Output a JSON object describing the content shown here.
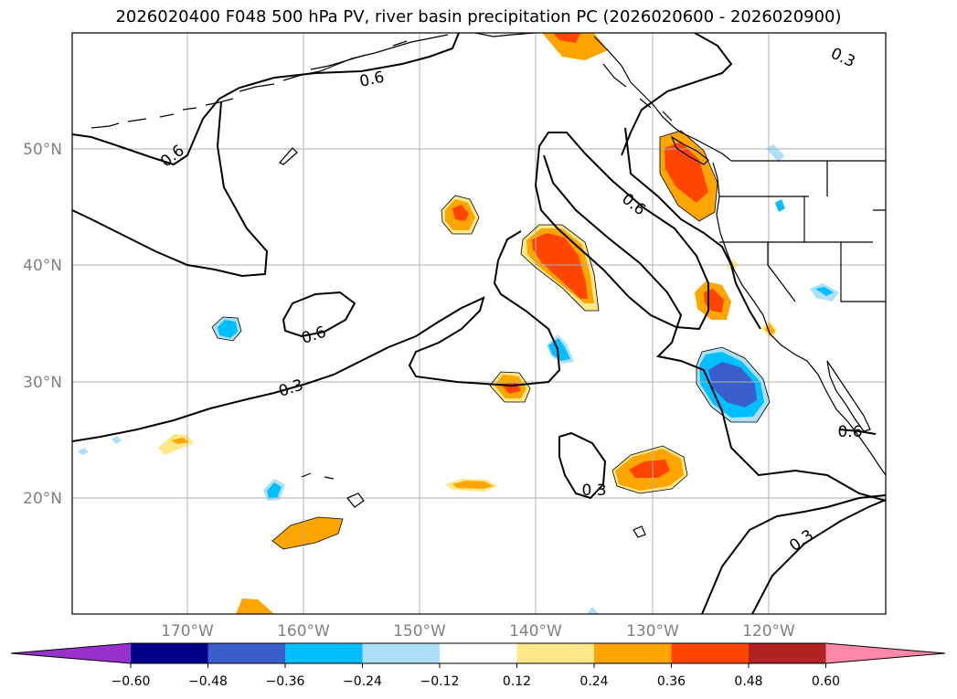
{
  "title": "2026020400 F048 500 hPa PV, river basin precipitation PC (2026020600 - 2026020900)",
  "map": {
    "lon_range": [
      -180,
      -110
    ],
    "lat_range": [
      10,
      60
    ],
    "lat_labels": [
      "50°N",
      "40°N",
      "30°N",
      "20°N"
    ],
    "lon_labels": [
      "170°W",
      "160°W",
      "150°W",
      "140°W",
      "130°W",
      "120°W"
    ],
    "contour_labels": [
      "0.6",
      "0.6",
      "0.6",
      "0.6",
      "0.3",
      "0.3",
      "0.3",
      "0.6",
      "0.3"
    ]
  },
  "colorbar": {
    "ticks": [
      "−0.60",
      "−0.48",
      "−0.36",
      "−0.24",
      "−0.12",
      "0.12",
      "0.24",
      "0.36",
      "0.48",
      "0.60"
    ],
    "colors": [
      "#9932CC",
      "#00008B",
      "#3A5FCD",
      "#00BFFF",
      "#ADE0F8",
      "#FFFFFF",
      "#FFE88A",
      "#FFA500",
      "#FF4500",
      "#B22222",
      "#FF88AA"
    ]
  },
  "colors": {
    "frame": "#000000",
    "grid": "#b0b0b0",
    "pv_contour": "#000000"
  }
}
